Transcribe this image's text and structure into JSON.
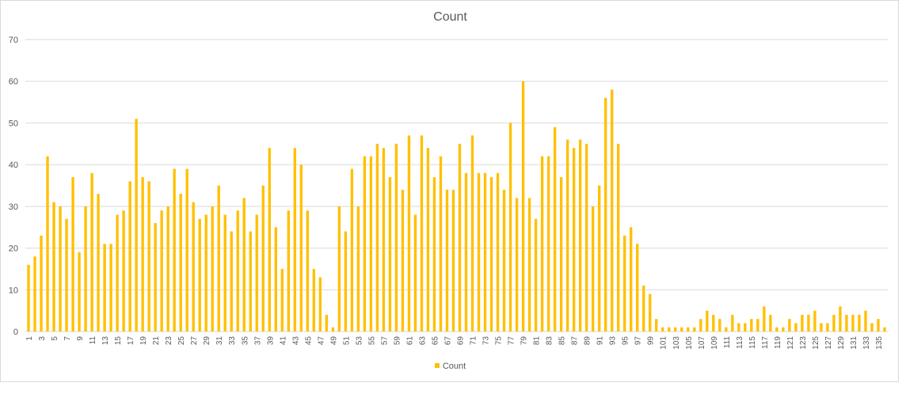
{
  "colors": {
    "bar": "#ffc000",
    "grid": "#d9d9d9",
    "axis_text": "#595959"
  },
  "chart_data": {
    "type": "bar",
    "title": "Count",
    "xlabel": "",
    "ylabel": "",
    "ylim": [
      0,
      70
    ],
    "yticks": [
      0,
      10,
      20,
      30,
      40,
      50,
      60,
      70
    ],
    "grid": true,
    "legend_position": "bottom",
    "x_label_every": 2,
    "categories": [
      1,
      2,
      3,
      4,
      5,
      6,
      7,
      8,
      9,
      10,
      11,
      12,
      13,
      14,
      15,
      16,
      17,
      18,
      19,
      20,
      21,
      22,
      23,
      24,
      25,
      26,
      27,
      28,
      29,
      30,
      31,
      32,
      33,
      34,
      35,
      36,
      37,
      38,
      39,
      40,
      41,
      42,
      43,
      44,
      45,
      46,
      47,
      48,
      49,
      50,
      51,
      52,
      53,
      54,
      55,
      56,
      57,
      58,
      59,
      60,
      61,
      62,
      63,
      64,
      65,
      66,
      67,
      68,
      69,
      70,
      71,
      72,
      73,
      74,
      75,
      76,
      77,
      78,
      79,
      80,
      81,
      82,
      83,
      84,
      85,
      86,
      87,
      88,
      89,
      90,
      91,
      92,
      93,
      94,
      95,
      96,
      97,
      98,
      99,
      100,
      101,
      102,
      103,
      104,
      105,
      106,
      107,
      108,
      109,
      110,
      111,
      112,
      113,
      114,
      115,
      116,
      117,
      118,
      119,
      120,
      121,
      122,
      123,
      124,
      125,
      126,
      127,
      128,
      129,
      130,
      131,
      132,
      133,
      134,
      135,
      136
    ],
    "series": [
      {
        "name": "Count",
        "values": [
          16,
          18,
          23,
          42,
          31,
          30,
          27,
          37,
          19,
          30,
          38,
          33,
          21,
          21,
          28,
          29,
          36,
          51,
          37,
          36,
          26,
          29,
          30,
          39,
          33,
          39,
          31,
          27,
          28,
          30,
          35,
          28,
          24,
          29,
          32,
          24,
          28,
          35,
          44,
          25,
          15,
          29,
          44,
          40,
          29,
          15,
          13,
          4,
          1,
          30,
          24,
          39,
          30,
          42,
          42,
          45,
          44,
          37,
          45,
          34,
          47,
          28,
          47,
          44,
          37,
          42,
          34,
          34,
          45,
          38,
          47,
          38,
          38,
          37,
          38,
          34,
          50,
          32,
          60,
          32,
          27,
          42,
          42,
          49,
          37,
          46,
          44,
          46,
          45,
          30,
          35,
          56,
          58,
          45,
          23,
          25,
          21,
          11,
          9,
          3,
          1,
          1,
          1,
          1,
          1,
          1,
          3,
          5,
          4,
          3,
          1,
          4,
          2,
          2,
          3,
          3,
          6,
          4,
          1,
          1,
          3,
          2,
          4,
          4,
          5,
          2,
          2,
          4,
          6,
          4,
          4,
          4,
          5,
          2,
          3,
          1
        ]
      }
    ]
  }
}
